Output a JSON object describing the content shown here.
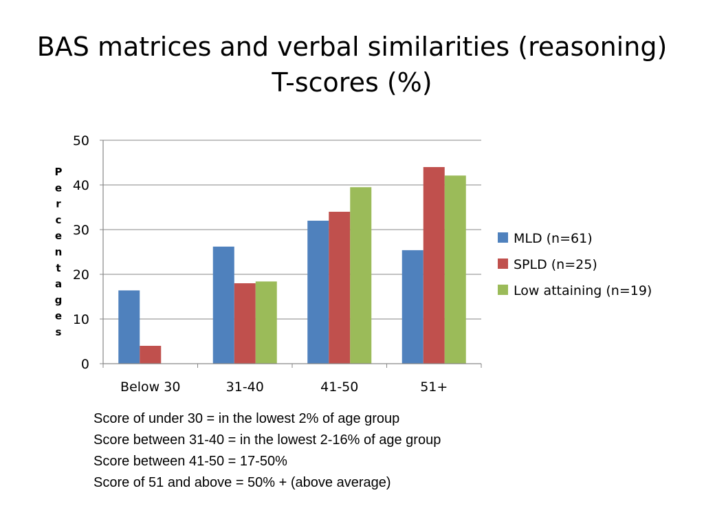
{
  "slide": {
    "title_line1": "BAS matrices and verbal similarities (reasoning)",
    "title_line2": "T-scores (%)"
  },
  "chart_data": {
    "type": "bar",
    "ylabel": "Percentages",
    "categories": [
      "Below 30",
      "31-40",
      "41-50",
      "51+"
    ],
    "ylim": [
      0,
      50
    ],
    "yticks": [
      0,
      10,
      20,
      30,
      40,
      50
    ],
    "grid": true,
    "legend_position": "right",
    "series": [
      {
        "name": "MLD (n=61)",
        "color": "#4F81BD",
        "values": [
          16.4,
          26.2,
          32.0,
          25.4
        ]
      },
      {
        "name": "SPLD (n=25)",
        "color": "#C0504D",
        "values": [
          4.0,
          18.0,
          34.0,
          44.0
        ]
      },
      {
        "name": "Low attaining (n=19)",
        "color": "#9BBB59",
        "values": [
          0,
          18.4,
          39.5,
          42.1
        ]
      }
    ]
  },
  "notes": [
    "Score of under 30 = in the lowest 2% of age group",
    "Score between 31-40 = in the lowest 2-16% of age group",
    "Score between 41-50 = 17-50%",
    "Score of 51 and above = 50% + (above average)"
  ]
}
